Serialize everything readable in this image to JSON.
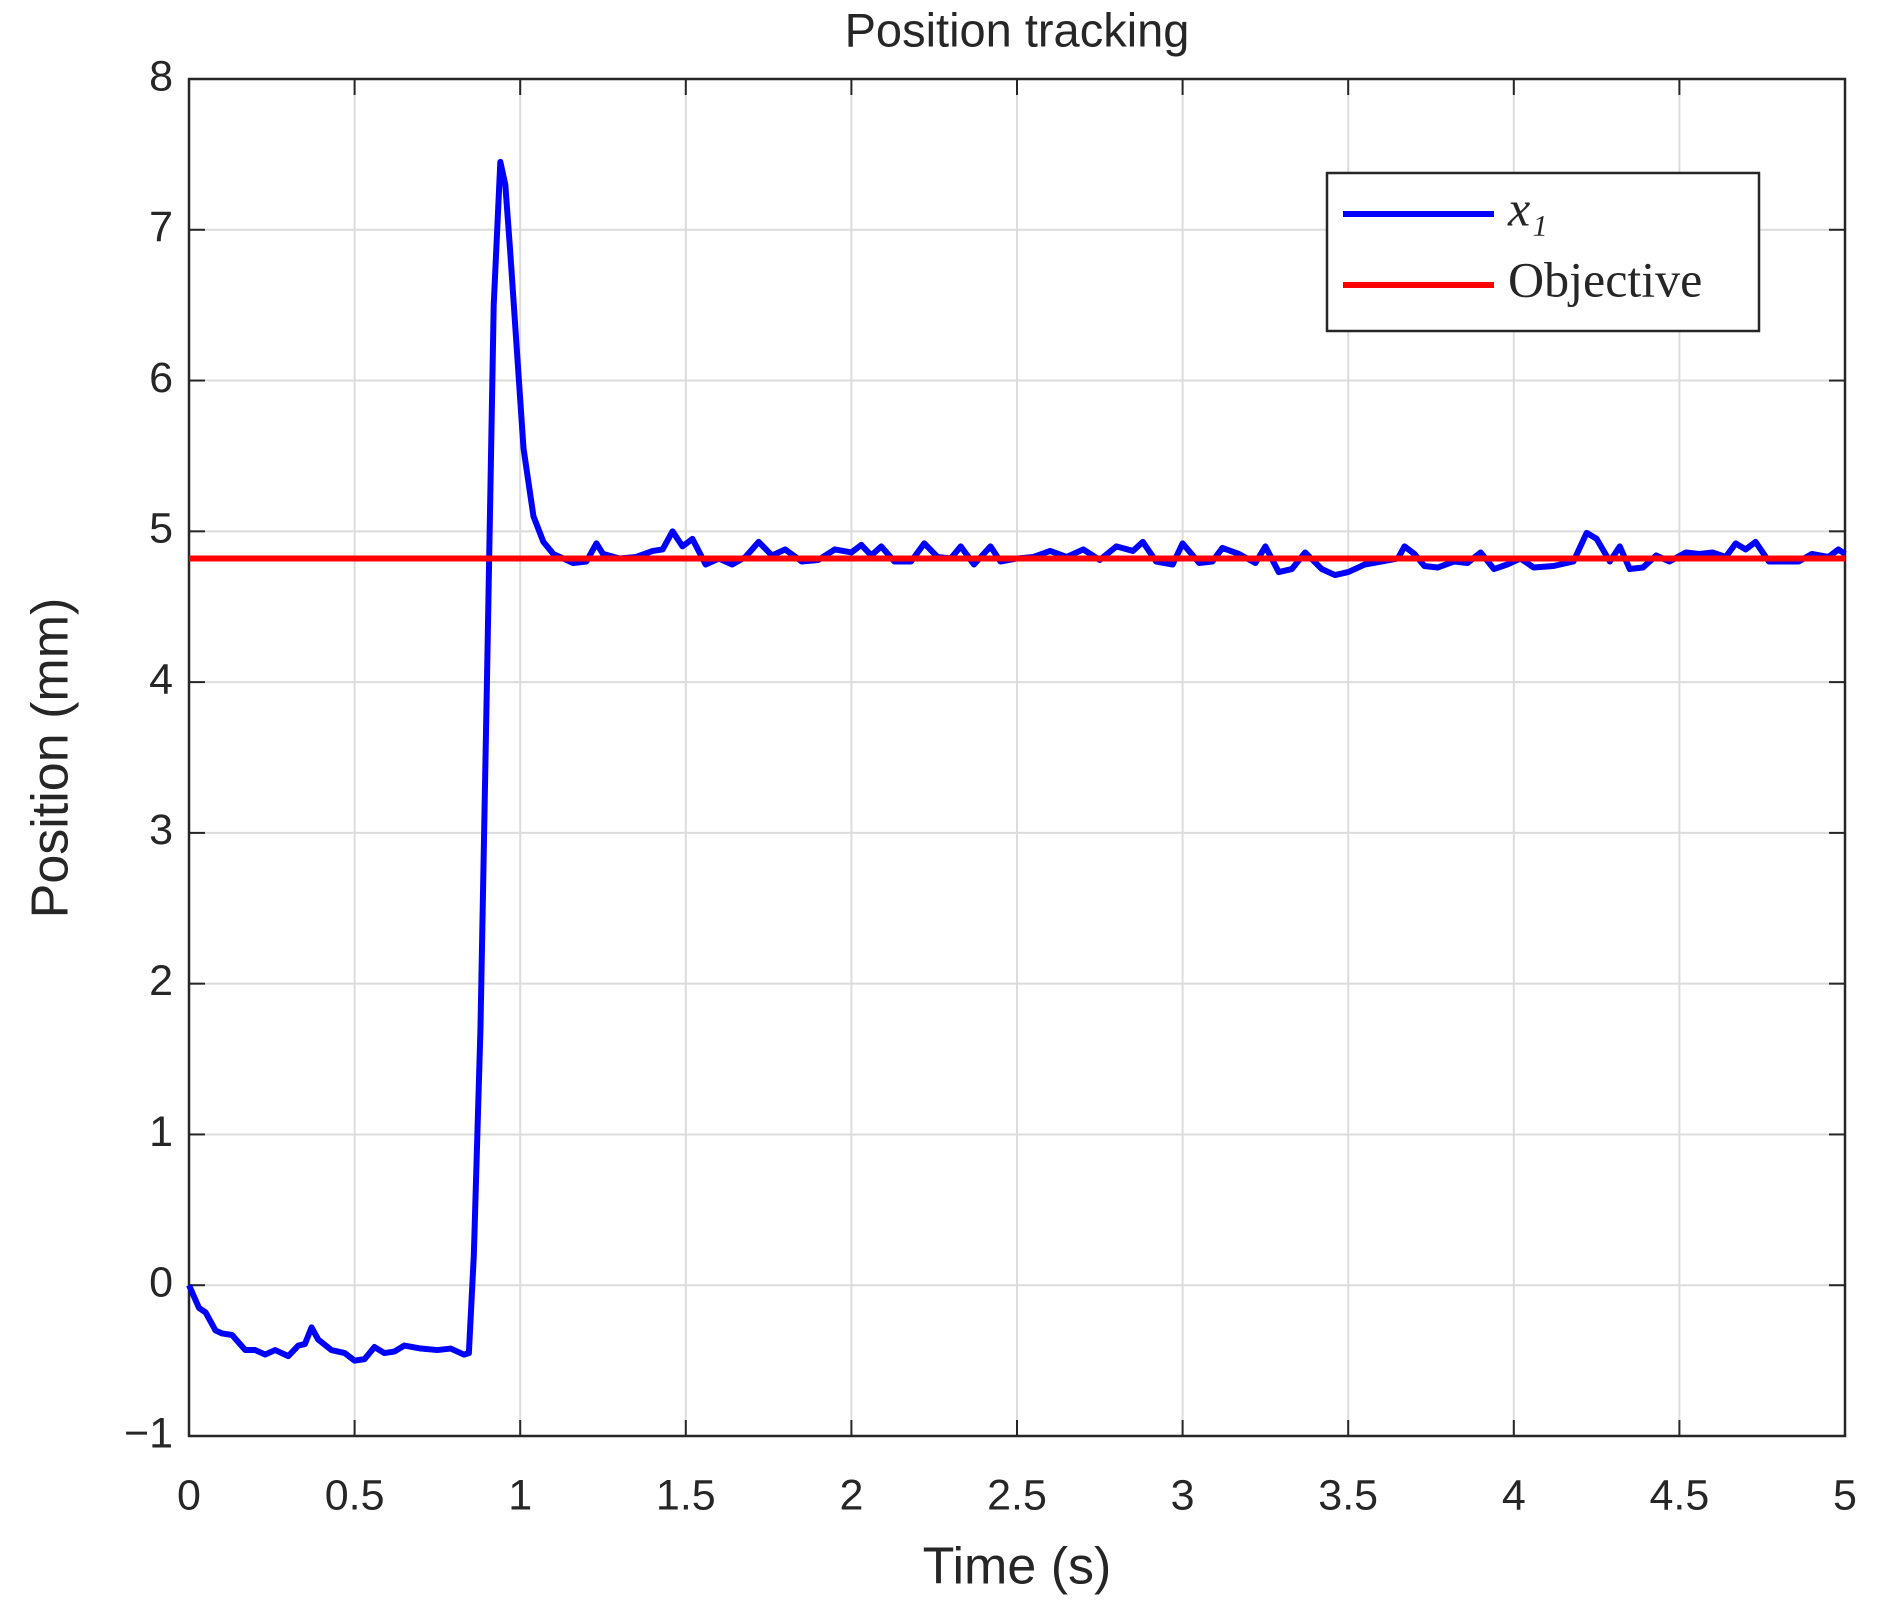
{
  "chart_data": {
    "type": "line",
    "title": "Position tracking",
    "xlabel": "Time (s)",
    "ylabel": "Position (mm)",
    "xlim": [
      0,
      5
    ],
    "ylim": [
      -1,
      8
    ],
    "xticks": [
      0,
      0.5,
      1,
      1.5,
      2,
      2.5,
      3,
      3.5,
      4,
      4.5,
      5
    ],
    "yticks": [
      {
        "value": -1,
        "label": "−1"
      },
      0,
      1,
      2,
      3,
      4,
      5,
      6,
      7,
      8
    ],
    "grid": true,
    "legend": "upper right",
    "series": [
      {
        "name": "x₁",
        "color": "#0000ff",
        "x": [
          0,
          0.03,
          0.05,
          0.08,
          0.1,
          0.13,
          0.17,
          0.2,
          0.23,
          0.26,
          0.3,
          0.33,
          0.35,
          0.37,
          0.39,
          0.43,
          0.47,
          0.5,
          0.53,
          0.56,
          0.59,
          0.62,
          0.65,
          0.7,
          0.75,
          0.79,
          0.83,
          0.845,
          0.86,
          0.88,
          0.9,
          0.92,
          0.94,
          0.955,
          0.97,
          0.99,
          1.01,
          1.04,
          1.07,
          1.1,
          1.13,
          1.16,
          1.2,
          1.23,
          1.25,
          1.3,
          1.35,
          1.4,
          1.43,
          1.46,
          1.49,
          1.52,
          1.56,
          1.6,
          1.64,
          1.68,
          1.72,
          1.76,
          1.8,
          1.85,
          1.9,
          1.95,
          2.0,
          2.03,
          2.06,
          2.09,
          2.13,
          2.18,
          2.22,
          2.26,
          2.3,
          2.33,
          2.37,
          2.42,
          2.45,
          2.5,
          2.55,
          2.6,
          2.65,
          2.7,
          2.75,
          2.8,
          2.85,
          2.88,
          2.92,
          2.97,
          3.0,
          3.05,
          3.09,
          3.12,
          3.17,
          3.22,
          3.25,
          3.29,
          3.33,
          3.37,
          3.42,
          3.46,
          3.5,
          3.55,
          3.6,
          3.65,
          3.67,
          3.7,
          3.73,
          3.77,
          3.82,
          3.86,
          3.9,
          3.94,
          3.98,
          4.02,
          4.06,
          4.12,
          4.18,
          4.22,
          4.25,
          4.29,
          4.32,
          4.35,
          4.39,
          4.43,
          4.47,
          4.52,
          4.56,
          4.6,
          4.64,
          4.67,
          4.7,
          4.73,
          4.77,
          4.82,
          4.86,
          4.9,
          4.95,
          4.98,
          5.0
        ],
        "values": [
          0,
          -0.15,
          -0.18,
          -0.3,
          -0.32,
          -0.33,
          -0.43,
          -0.43,
          -0.46,
          -0.43,
          -0.47,
          -0.4,
          -0.39,
          -0.28,
          -0.36,
          -0.43,
          -0.45,
          -0.5,
          -0.49,
          -0.41,
          -0.45,
          -0.44,
          -0.4,
          -0.42,
          -0.43,
          -0.42,
          -0.46,
          -0.45,
          0.2,
          1.7,
          4.05,
          6.5,
          7.45,
          7.3,
          6.85,
          6.2,
          5.55,
          5.1,
          4.93,
          4.85,
          4.82,
          4.79,
          4.8,
          4.92,
          4.85,
          4.82,
          4.83,
          4.87,
          4.88,
          5.0,
          4.9,
          4.95,
          4.78,
          4.82,
          4.78,
          4.83,
          4.93,
          4.84,
          4.88,
          4.8,
          4.81,
          4.88,
          4.86,
          4.91,
          4.84,
          4.9,
          4.8,
          4.8,
          4.92,
          4.83,
          4.82,
          4.9,
          4.78,
          4.9,
          4.8,
          4.82,
          4.83,
          4.87,
          4.83,
          4.88,
          4.81,
          4.9,
          4.87,
          4.93,
          4.8,
          4.78,
          4.92,
          4.79,
          4.8,
          4.89,
          4.85,
          4.79,
          4.9,
          4.73,
          4.75,
          4.86,
          4.75,
          4.71,
          4.73,
          4.78,
          4.8,
          4.82,
          4.9,
          4.85,
          4.77,
          4.76,
          4.8,
          4.79,
          4.86,
          4.75,
          4.78,
          4.82,
          4.76,
          4.77,
          4.8,
          4.99,
          4.95,
          4.8,
          4.9,
          4.75,
          4.76,
          4.84,
          4.8,
          4.86,
          4.85,
          4.86,
          4.83,
          4.92,
          4.88,
          4.93,
          4.8,
          4.8,
          4.8,
          4.85,
          4.83,
          4.88,
          4.85
        ]
      },
      {
        "name": "Objective",
        "color": "#ff0000",
        "x": [
          0,
          5
        ],
        "values": [
          4.82,
          4.82
        ]
      }
    ]
  }
}
